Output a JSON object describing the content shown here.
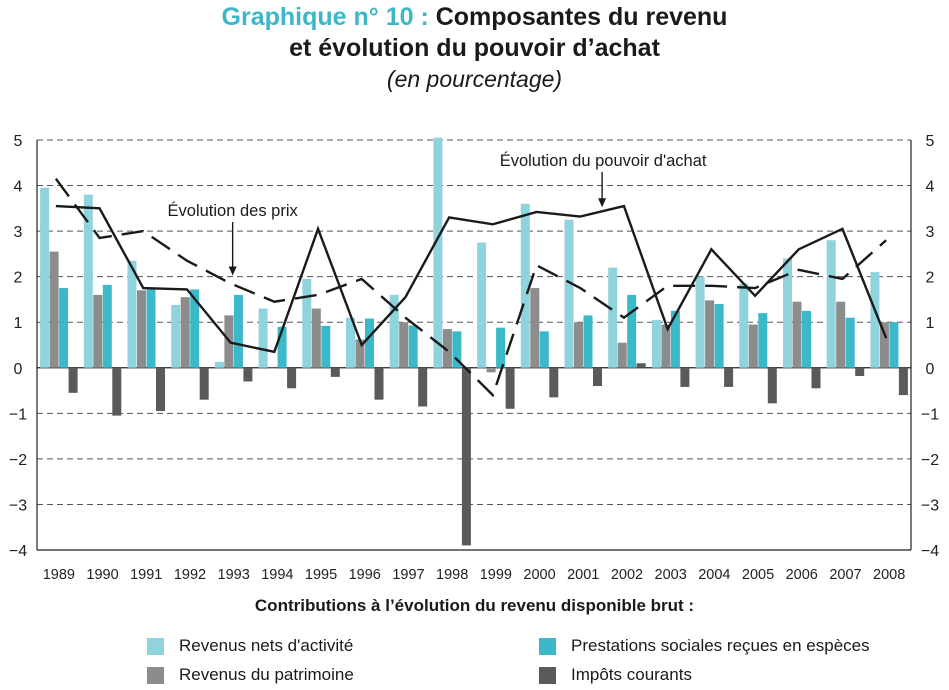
{
  "header": {
    "title_prefix": "Graphique n° 10 :",
    "title_line1": "Composantes du revenu",
    "title_line2": "et évolution du pouvoir d’achat",
    "subtitle": "(en pourcentage)"
  },
  "legend": {
    "title": "Contributions à l’évolution du revenu disponible brut :",
    "items": [
      {
        "label": "Revenus nets d'activité",
        "color": "#8fd3dc"
      },
      {
        "label": "Revenus du patrimoine",
        "color": "#8c8c8c"
      },
      {
        "label": "Prestations sociales reçues en espèces",
        "color": "#3cb9c9"
      },
      {
        "label": "Impôts courants",
        "color": "#5a5a5a"
      }
    ]
  },
  "chart_data": {
    "type": "bar",
    "categories": [
      "1989",
      "1990",
      "1991",
      "1992",
      "1993",
      "1994",
      "1995",
      "1996",
      "1997",
      "1998",
      "1999",
      "2000",
      "2001",
      "2002",
      "2003",
      "2004",
      "2005",
      "2006",
      "2007",
      "2008"
    ],
    "ylim": [
      -4,
      5
    ],
    "yticks": [
      "−4",
      "−3",
      "−2",
      "−1",
      "0",
      "1",
      "2",
      "3",
      "4",
      "5"
    ],
    "grid": "dashed horizontal",
    "series": [
      {
        "name": "Revenus nets d'activité",
        "color": "#8fd3dc",
        "values": [
          3.95,
          3.8,
          2.35,
          1.38,
          0.13,
          1.3,
          1.95,
          1.1,
          1.6,
          5.05,
          2.75,
          3.6,
          3.25,
          2.2,
          1.05,
          2.0,
          1.85,
          2.4,
          2.8,
          2.1
        ]
      },
      {
        "name": "Revenus du patrimoine",
        "color": "#8c8c8c",
        "values": [
          2.55,
          1.6,
          1.7,
          1.55,
          1.15,
          0.0,
          1.3,
          0.62,
          1.0,
          0.85,
          -0.1,
          1.75,
          1.0,
          0.55,
          0.95,
          1.48,
          0.95,
          1.45,
          1.45,
          1.0
        ]
      },
      {
        "name": "Prestations sociales reçues en espèces",
        "color": "#3cb9c9",
        "values": [
          1.75,
          1.82,
          1.72,
          1.72,
          1.6,
          0.9,
          0.92,
          1.08,
          0.93,
          0.8,
          0.88,
          0.8,
          1.15,
          1.6,
          1.25,
          1.4,
          1.2,
          1.25,
          1.1,
          1.0
        ]
      },
      {
        "name": "Impôts courants",
        "color": "#5a5a5a",
        "values": [
          -0.55,
          -1.05,
          -0.95,
          -0.7,
          -0.3,
          -0.45,
          -0.2,
          -0.7,
          -0.85,
          -3.9,
          -0.9,
          -0.65,
          -0.4,
          0.1,
          -0.42,
          -0.42,
          -0.78,
          -0.45,
          -0.18,
          -0.6
        ]
      }
    ],
    "lines": [
      {
        "name": "Évolution du pouvoir d'achat",
        "style": "solid",
        "values": [
          3.55,
          3.5,
          1.75,
          1.72,
          0.55,
          0.35,
          3.05,
          0.5,
          1.55,
          3.3,
          3.15,
          3.42,
          3.32,
          3.55,
          0.85,
          2.6,
          1.58,
          2.6,
          3.05,
          0.65
        ]
      },
      {
        "name": "Évolution des prix",
        "style": "dashed",
        "values": [
          4.15,
          2.85,
          3.0,
          2.35,
          1.85,
          1.45,
          1.6,
          1.95,
          1.1,
          0.35,
          -0.6,
          2.25,
          1.75,
          1.1,
          1.8,
          1.8,
          1.75,
          2.15,
          1.95,
          2.8
        ]
      }
    ],
    "annotations": [
      {
        "text": "Évolution du pouvoir d'achat",
        "series": "Évolution du pouvoir d'achat",
        "at": "2001"
      },
      {
        "text": "Évolution des prix",
        "series": "Évolution des prix",
        "at": "1993"
      }
    ]
  }
}
